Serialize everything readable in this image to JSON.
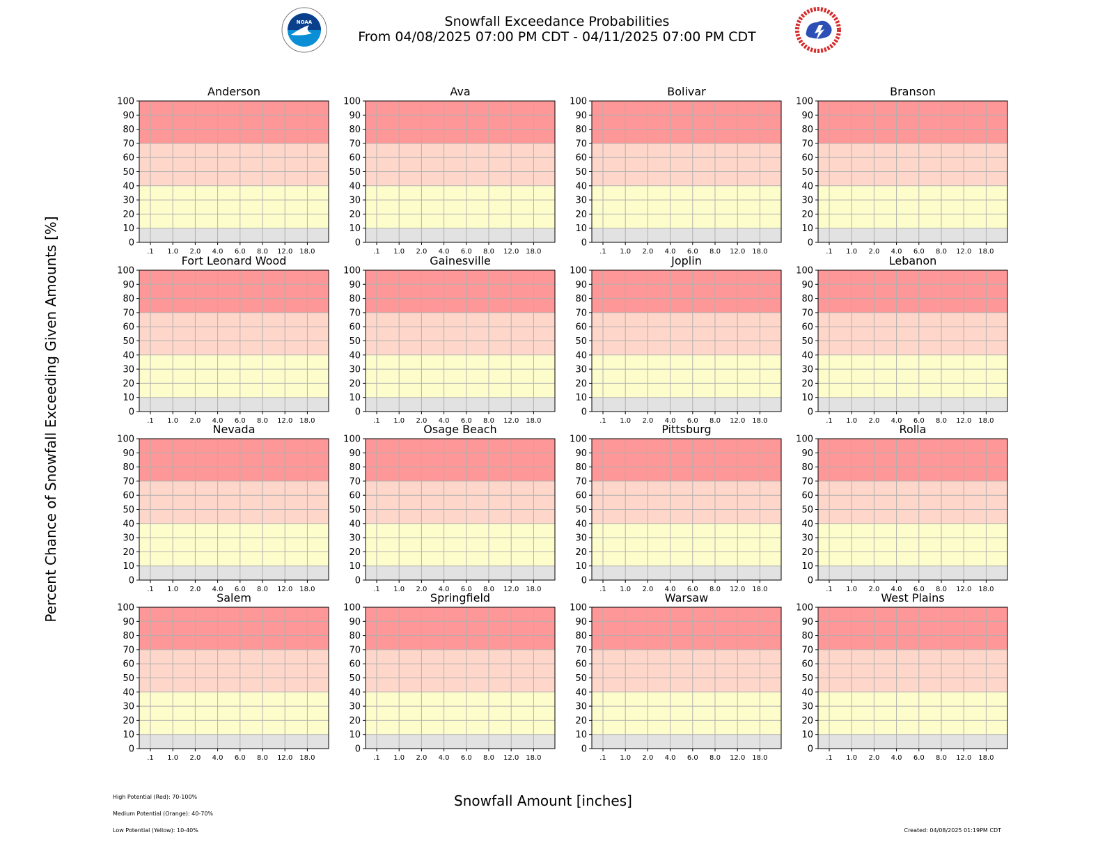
{
  "header": {
    "title_line1": "Snowfall Exceedance Probabilities",
    "title_line2": "From 04/08/2025 07:00 PM CDT - 04/11/2025 07:00 PM CDT"
  },
  "logos": {
    "left": "noaa-logo",
    "right": "nws-logo"
  },
  "footer": {
    "legend": [
      "High Potential (Red): 70-100%",
      "Medium Potential (Orange): 40-70%",
      "Low Potential (Yellow): 10-40%"
    ],
    "created": "Created: 04/08/2025 01:19PM CDT"
  },
  "colors": {
    "high": "#fe9797",
    "medium": "#fed6ca",
    "low": "#fdfdcb",
    "minimal": "#e2e2e2",
    "grid": "#b0b0b0"
  },
  "chart_data": {
    "type": "bar",
    "xlabel": "Snowfall Amount [inches]",
    "ylabel": "Percent Chance of Snowfall Exceeding Given Amounts [%]",
    "ylim": [
      0,
      100
    ],
    "yticks": [
      "0",
      "10",
      "20",
      "30",
      "40",
      "50",
      "60",
      "70",
      "80",
      "90",
      "100"
    ],
    "categories": [
      ".1",
      "1.0",
      "2.0",
      "4.0",
      "6.0",
      "8.0",
      "12.0",
      "18.0"
    ],
    "grid": true,
    "bands": [
      {
        "from": 70,
        "to": 100,
        "color": "high"
      },
      {
        "from": 40,
        "to": 70,
        "color": "medium"
      },
      {
        "from": 10,
        "to": 40,
        "color": "low"
      },
      {
        "from": 0,
        "to": 10,
        "color": "minimal"
      }
    ],
    "panels": [
      {
        "title": "Anderson",
        "values": [
          0,
          0,
          0,
          0,
          0,
          0,
          0,
          0
        ]
      },
      {
        "title": "Ava",
        "values": [
          0,
          0,
          0,
          0,
          0,
          0,
          0,
          0
        ]
      },
      {
        "title": "Bolivar",
        "values": [
          0,
          0,
          0,
          0,
          0,
          0,
          0,
          0
        ]
      },
      {
        "title": "Branson",
        "values": [
          0,
          0,
          0,
          0,
          0,
          0,
          0,
          0
        ]
      },
      {
        "title": "Fort Leonard Wood",
        "values": [
          0,
          0,
          0,
          0,
          0,
          0,
          0,
          0
        ]
      },
      {
        "title": "Gainesville",
        "values": [
          0,
          0,
          0,
          0,
          0,
          0,
          0,
          0
        ]
      },
      {
        "title": "Joplin",
        "values": [
          0,
          0,
          0,
          0,
          0,
          0,
          0,
          0
        ]
      },
      {
        "title": "Lebanon",
        "values": [
          0,
          0,
          0,
          0,
          0,
          0,
          0,
          0
        ]
      },
      {
        "title": "Nevada",
        "values": [
          0,
          0,
          0,
          0,
          0,
          0,
          0,
          0
        ]
      },
      {
        "title": "Osage Beach",
        "values": [
          0,
          0,
          0,
          0,
          0,
          0,
          0,
          0
        ]
      },
      {
        "title": "Pittsburg",
        "values": [
          0,
          0,
          0,
          0,
          0,
          0,
          0,
          0
        ]
      },
      {
        "title": "Rolla",
        "values": [
          0,
          0,
          0,
          0,
          0,
          0,
          0,
          0
        ]
      },
      {
        "title": "Salem",
        "values": [
          0,
          0,
          0,
          0,
          0,
          0,
          0,
          0
        ]
      },
      {
        "title": "Springfield",
        "values": [
          0,
          0,
          0,
          0,
          0,
          0,
          0,
          0
        ]
      },
      {
        "title": "Warsaw",
        "values": [
          0,
          0,
          0,
          0,
          0,
          0,
          0,
          0
        ]
      },
      {
        "title": "West Plains",
        "values": [
          0,
          0,
          0,
          0,
          0,
          0,
          0,
          0
        ]
      }
    ]
  }
}
